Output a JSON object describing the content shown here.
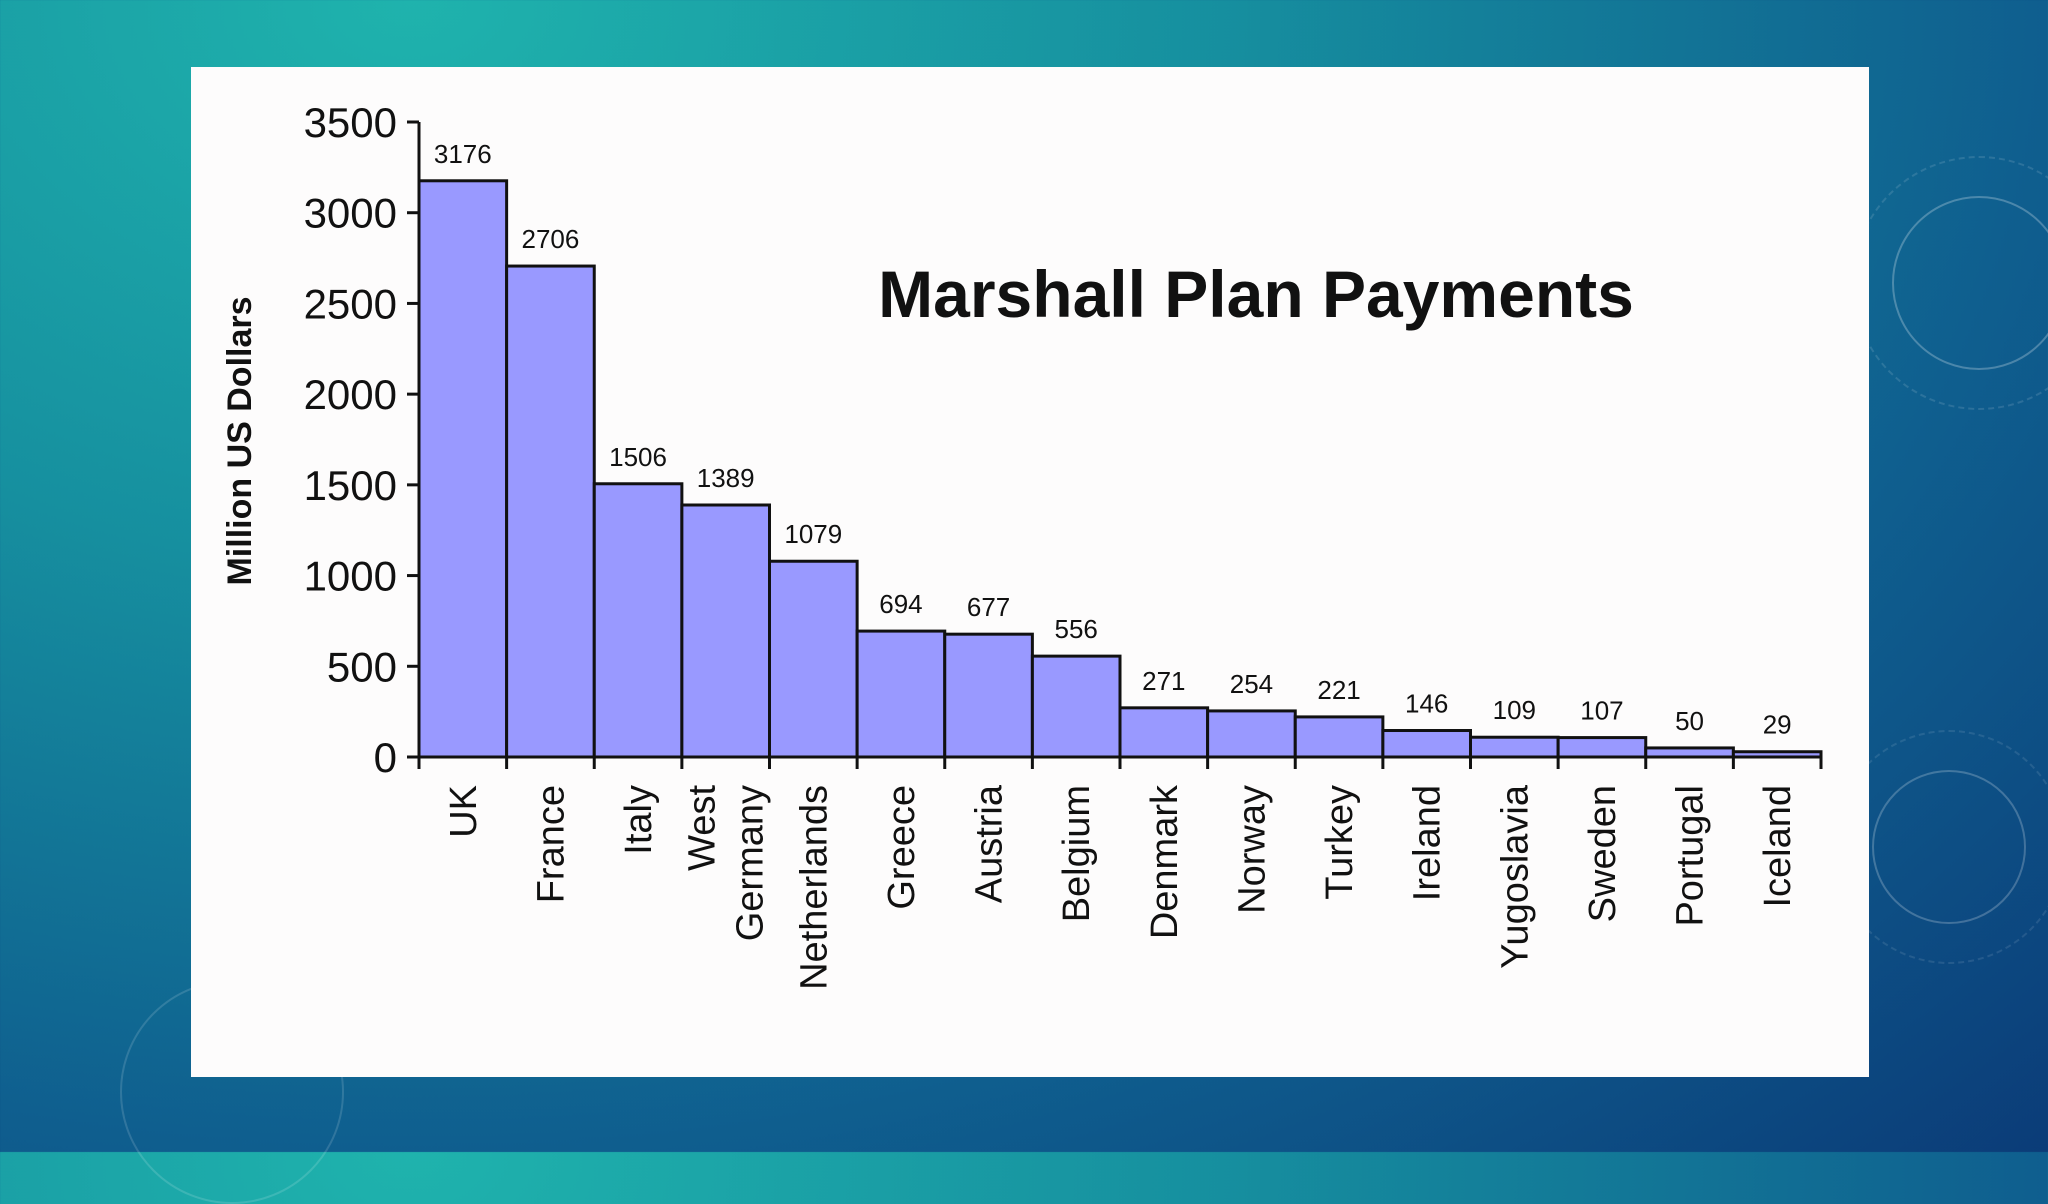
{
  "chart_data": {
    "type": "bar",
    "title": "Marshall Plan Payments",
    "ylabel": "Million US Dollars",
    "xlabel": "",
    "ylim": [
      0,
      3500
    ],
    "yticks": [
      0,
      500,
      1000,
      1500,
      2000,
      2500,
      3000,
      3500
    ],
    "categories": [
      "UK",
      "France",
      "Italy",
      "West Germany",
      "Netherlands",
      "Greece",
      "Austria",
      "Belgium",
      "Denmark",
      "Norway",
      "Turkey",
      "Ireland",
      "Yugoslavia",
      "Sweden",
      "Portugal",
      "Iceland"
    ],
    "category_lines": [
      [
        "UK"
      ],
      [
        "France"
      ],
      [
        "Italy"
      ],
      [
        "West",
        "Germany"
      ],
      [
        "Netherlands"
      ],
      [
        "Greece"
      ],
      [
        "Austria"
      ],
      [
        "Belgium"
      ],
      [
        "Denmark"
      ],
      [
        "Norway"
      ],
      [
        "Turkey"
      ],
      [
        "Ireland"
      ],
      [
        "Yugoslavia"
      ],
      [
        "Sweden"
      ],
      [
        "Portugal"
      ],
      [
        "Iceland"
      ]
    ],
    "values": [
      3176,
      2706,
      1506,
      1389,
      1079,
      694,
      677,
      556,
      271,
      254,
      221,
      146,
      109,
      107,
      50,
      29
    ],
    "bar_color": "#9999ff",
    "grid": false,
    "legend": "none"
  }
}
